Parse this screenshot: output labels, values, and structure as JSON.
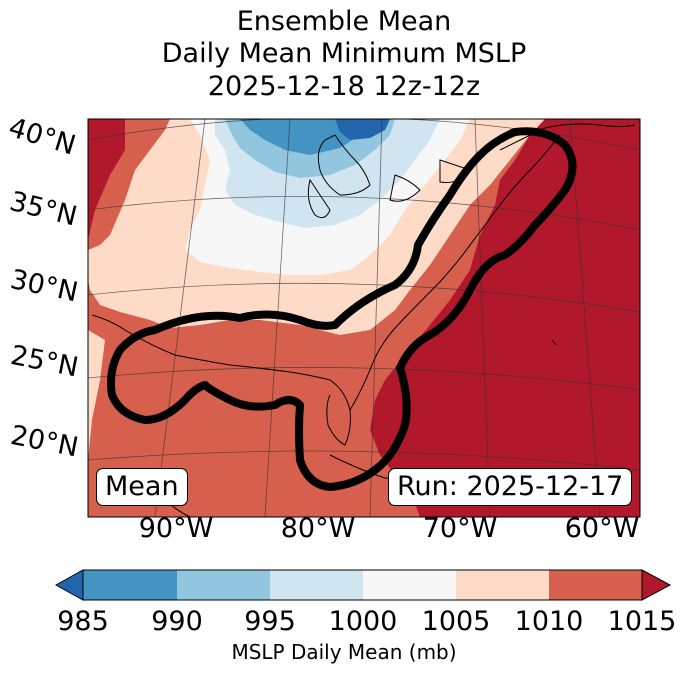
{
  "title": {
    "line1": "Ensemble Mean",
    "line2": "Daily Mean Minimum MSLP",
    "line3": "2025-12-18 12z-12z"
  },
  "map": {
    "latitude_labels": [
      "40°N",
      "35°N",
      "30°N",
      "25°N",
      "20°N"
    ],
    "longitude_labels": [
      "90°W",
      "80°W",
      "70°W",
      "60°W"
    ],
    "left_box": "Mean",
    "right_box": "Run: 2025-12-17",
    "contour_color": "#000000"
  },
  "colorbar": {
    "title": "MSLP Daily Mean (mb)",
    "tick_labels": [
      "985",
      "990",
      "995",
      "1000",
      "1005",
      "1010",
      "1015"
    ],
    "bins": [
      {
        "range": "<985",
        "color": "#2166ac"
      },
      {
        "range": "985-990",
        "color": "#4393c3"
      },
      {
        "range": "990-995",
        "color": "#92c5de"
      },
      {
        "range": "995-1000",
        "color": "#d1e5f0"
      },
      {
        "range": "1000-1005",
        "color": "#f7f7f7"
      },
      {
        "range": "1005-1010",
        "color": "#fddbc7"
      },
      {
        "range": "1010-1015",
        "color": "#d6604d"
      },
      {
        "range": ">1015",
        "color": "#b2182b"
      }
    ]
  }
}
